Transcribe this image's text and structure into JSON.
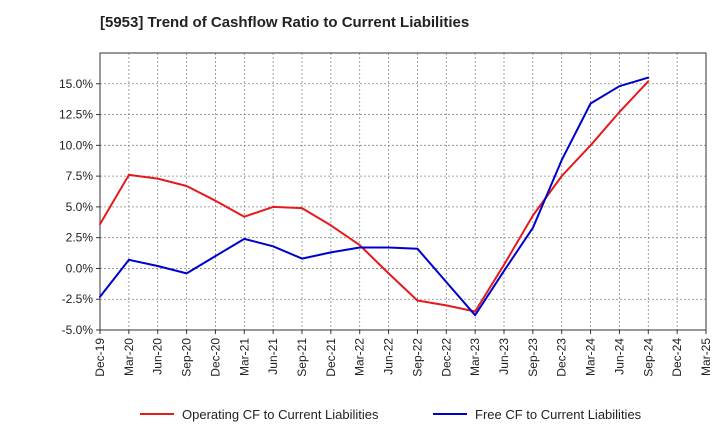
{
  "chart_data": {
    "type": "line",
    "title": "[5953]  Trend of Cashflow Ratio to Current Liabilities",
    "categories": [
      "Dec-19",
      "Mar-20",
      "Jun-20",
      "Sep-20",
      "Dec-20",
      "Mar-21",
      "Jun-21",
      "Sep-21",
      "Dec-21",
      "Mar-22",
      "Jun-22",
      "Sep-22",
      "Dec-22",
      "Mar-23",
      "Jun-23",
      "Sep-23",
      "Dec-23",
      "Mar-24",
      "Jun-24",
      "Sep-24",
      "Dec-24",
      "Mar-25"
    ],
    "ylim": [
      -5.0,
      17.5
    ],
    "yticks": [
      -5.0,
      -2.5,
      0.0,
      2.5,
      5.0,
      7.5,
      10.0,
      12.5,
      15.0
    ],
    "ytick_labels": [
      "-5.0%",
      "-2.5%",
      "0.0%",
      "2.5%",
      "5.0%",
      "7.5%",
      "10.0%",
      "12.5%",
      "15.0%"
    ],
    "grid": true,
    "legend_position": "bottom",
    "series": [
      {
        "name": "Operating CF to Current Liabilities",
        "color": "#e41a1c",
        "values": [
          3.6,
          7.6,
          7.3,
          6.7,
          5.5,
          4.2,
          5.0,
          4.9,
          3.5,
          1.9,
          -0.4,
          -2.6,
          -3.0,
          -3.5,
          0.3,
          4.3,
          7.5,
          10.0,
          12.7,
          15.2,
          null,
          null
        ]
      },
      {
        "name": "Free CF to Current Liabilities",
        "color": "#0000cc",
        "values": [
          -2.3,
          0.7,
          0.2,
          -0.4,
          1.0,
          2.4,
          1.8,
          0.8,
          1.3,
          1.7,
          1.7,
          1.6,
          -1.1,
          -3.8,
          -0.2,
          3.3,
          8.8,
          13.4,
          14.8,
          15.5,
          null,
          null
        ]
      }
    ]
  }
}
